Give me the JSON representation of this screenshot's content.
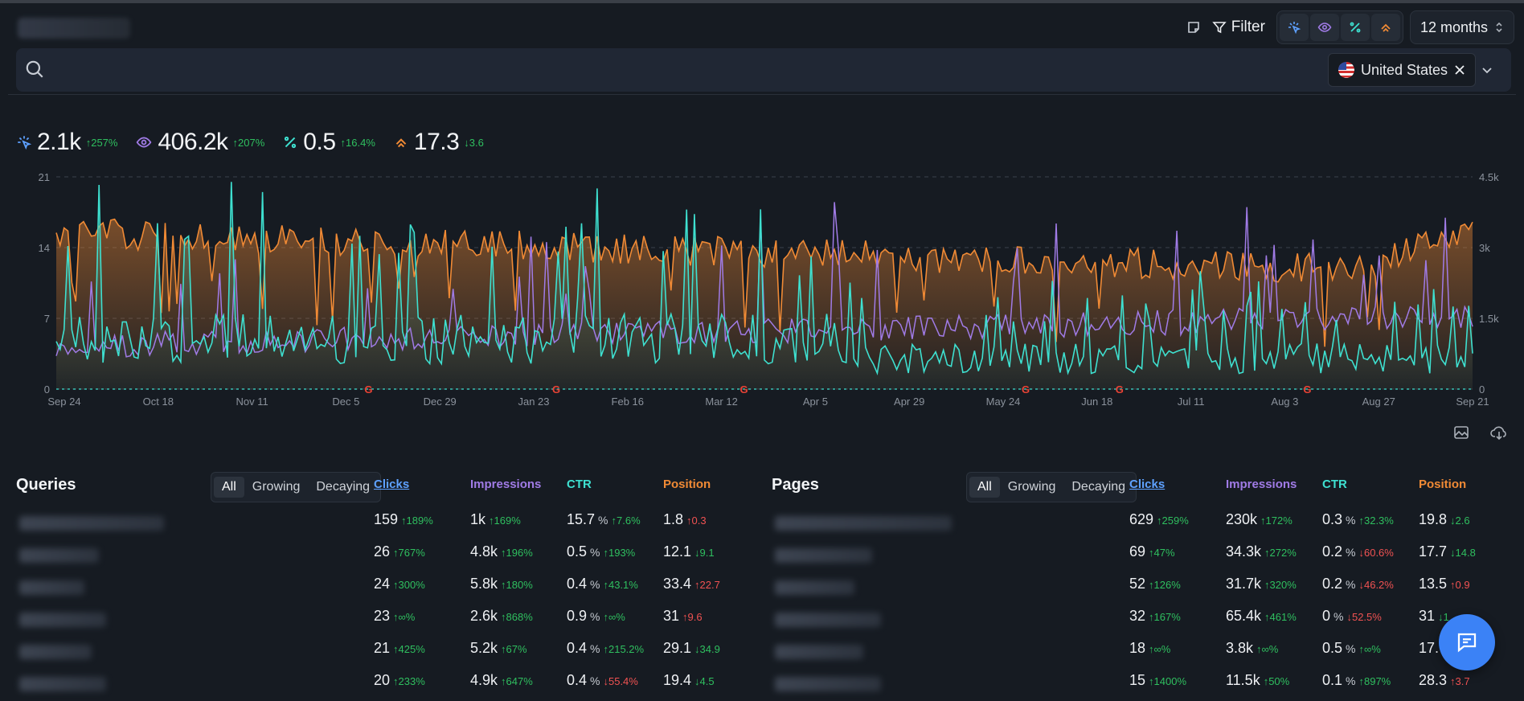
{
  "header": {
    "filter_label": "Filter",
    "range_label": "12 months"
  },
  "search": {
    "placeholder": "",
    "country_chip": "United States"
  },
  "colors": {
    "clicks": "#5ea1ff",
    "impressions": "#a07be6",
    "ctr": "#3ee0d0",
    "position": "#f08a35",
    "positive": "#2fbf5f",
    "negative": "#f05252"
  },
  "summary": {
    "clicks": {
      "value": "2.1k",
      "delta": "↑257%"
    },
    "impressions": {
      "value": "406.2k",
      "delta": "↑207%"
    },
    "ctr": {
      "value": "0.5",
      "delta": "↑16.4%"
    },
    "position": {
      "value": "17.3",
      "delta": "↓3.6"
    }
  },
  "chart_data": {
    "type": "line",
    "x_labels": [
      "Sep 24",
      "Oct 18",
      "Nov 11",
      "Dec 5",
      "Dec 29",
      "Jan 23",
      "Feb 16",
      "Mar 12",
      "Apr 5",
      "Apr 29",
      "May 24",
      "Jun 18",
      "Jul 11",
      "Aug 3",
      "Aug 27",
      "Sep 21"
    ],
    "left_ticks": [
      "21",
      "14",
      "7",
      "0"
    ],
    "right_ticks": [
      "4.5k",
      "3k",
      "1.5k",
      "0"
    ],
    "ylim_left": [
      0,
      21
    ],
    "ylim_right": [
      0,
      4500
    ],
    "google_update_markers": [
      "Dec 5",
      "Jan 23",
      "Mar 12",
      "May 24",
      "Jun 18",
      "Aug 3"
    ],
    "series": [
      {
        "key": "position",
        "color": "#f08a35",
        "area": true
      },
      {
        "key": "impressions",
        "color": "#a07be6",
        "area": false
      },
      {
        "key": "ctr",
        "color": "#3ee0d0",
        "area": true
      }
    ]
  },
  "queries": {
    "title": "Queries",
    "seg": [
      "All",
      "Growing",
      "Decaying"
    ],
    "cols": {
      "clicks": "Clicks",
      "impressions": "Impressions",
      "ctr": "CTR",
      "position": "Position"
    },
    "rows": [
      {
        "c": "159",
        "cd": "↑189%",
        "cdir": "up",
        "i": "1k",
        "id": "↑169%",
        "idir": "up",
        "t": "15.7",
        "td": "↑7.6%",
        "tdir": "up",
        "p": "1.8",
        "pd": "↑0.3",
        "pdir": "down"
      },
      {
        "c": "26",
        "cd": "↑767%",
        "cdir": "up",
        "i": "4.8k",
        "id": "↑196%",
        "idir": "up",
        "t": "0.5",
        "td": "↑193%",
        "tdir": "up",
        "p": "12.1",
        "pd": "↓9.1",
        "pdir": "up"
      },
      {
        "c": "24",
        "cd": "↑300%",
        "cdir": "up",
        "i": "5.8k",
        "id": "↑180%",
        "idir": "up",
        "t": "0.4",
        "td": "↑43.1%",
        "tdir": "up",
        "p": "33.4",
        "pd": "↑22.7",
        "pdir": "down"
      },
      {
        "c": "23",
        "cd": "↑∞%",
        "cdir": "up",
        "i": "2.6k",
        "id": "↑868%",
        "idir": "up",
        "t": "0.9",
        "td": "↑∞%",
        "tdir": "up",
        "p": "31",
        "pd": "↑9.6",
        "pdir": "down"
      },
      {
        "c": "21",
        "cd": "↑425%",
        "cdir": "up",
        "i": "5.2k",
        "id": "↑67%",
        "idir": "up",
        "t": "0.4",
        "td": "↑215.2%",
        "tdir": "up",
        "p": "29.1",
        "pd": "↓34.9",
        "pdir": "up"
      },
      {
        "c": "20",
        "cd": "↑233%",
        "cdir": "up",
        "i": "4.9k",
        "id": "↑647%",
        "idir": "up",
        "t": "0.4",
        "td": "↓55.4%",
        "tdir": "down",
        "p": "19.4",
        "pd": "↓4.5",
        "pdir": "up"
      }
    ]
  },
  "pages": {
    "title": "Pages",
    "seg": [
      "All",
      "Growing",
      "Decaying"
    ],
    "cols": {
      "clicks": "Clicks",
      "impressions": "Impressions",
      "ctr": "CTR",
      "position": "Position"
    },
    "rows": [
      {
        "c": "629",
        "cd": "↑259%",
        "cdir": "up",
        "i": "230k",
        "id": "↑172%",
        "idir": "up",
        "t": "0.3",
        "td": "↑32.3%",
        "tdir": "up",
        "p": "19.8",
        "pd": "↓2.6",
        "pdir": "up"
      },
      {
        "c": "69",
        "cd": "↑47%",
        "cdir": "up",
        "i": "34.3k",
        "id": "↑272%",
        "idir": "up",
        "t": "0.2",
        "td": "↓60.6%",
        "tdir": "down",
        "p": "17.7",
        "pd": "↓14.8",
        "pdir": "up"
      },
      {
        "c": "52",
        "cd": "↑126%",
        "cdir": "up",
        "i": "31.7k",
        "id": "↑320%",
        "idir": "up",
        "t": "0.2",
        "td": "↓46.2%",
        "tdir": "down",
        "p": "13.5",
        "pd": "↑0.9",
        "pdir": "down"
      },
      {
        "c": "32",
        "cd": "↑167%",
        "cdir": "up",
        "i": "65.4k",
        "id": "↑461%",
        "idir": "up",
        "t": "0",
        "td": "↓52.5%",
        "tdir": "down",
        "p": "31",
        "pd": "↓1",
        "pdir": "up"
      },
      {
        "c": "18",
        "cd": "↑∞%",
        "cdir": "up",
        "i": "3.8k",
        "id": "↑∞%",
        "idir": "up",
        "t": "0.5",
        "td": "↑∞%",
        "tdir": "up",
        "p": "17.",
        "pd": "",
        "pdir": "up"
      },
      {
        "c": "15",
        "cd": "↑1400%",
        "cdir": "up",
        "i": "11.5k",
        "id": "↑50%",
        "idir": "up",
        "t": "0.1",
        "td": "↑897%",
        "tdir": "up",
        "p": "28.3",
        "pd": "↑3.7",
        "pdir": "down"
      }
    ]
  }
}
